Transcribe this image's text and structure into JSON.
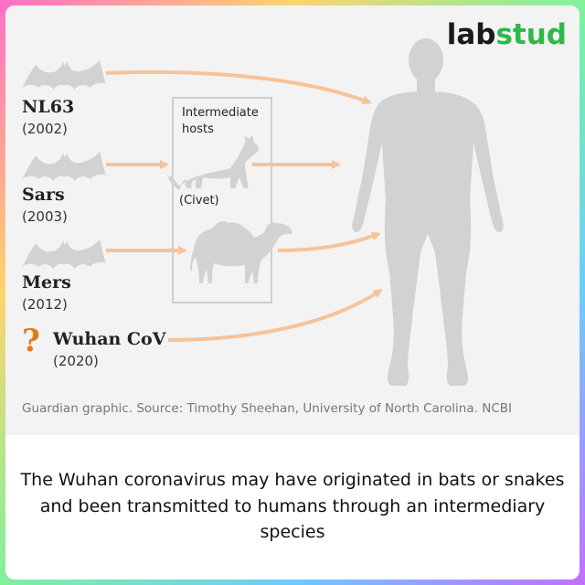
{
  "logo": {
    "part1": "lab",
    "part2": "stud"
  },
  "viruses": [
    {
      "name": "NL63",
      "year": "(2002)"
    },
    {
      "name": "Sars",
      "year": "(2003)"
    },
    {
      "name": "Mers",
      "year": "(2012)"
    },
    {
      "name": "Wuhan CoV",
      "year": "(2020)"
    }
  ],
  "unknown_marker": "?",
  "intermediate_box": {
    "title": "Intermediate hosts",
    "civet_label": "(Civet)"
  },
  "source": "Guardian graphic. Source: Timothy Sheehan, University of North Carolina. NCBI",
  "caption": "The Wuhan coronavirus may have originated in bats or snakes and been transmitted to humans through an intermediary species",
  "colors": {
    "arrow": "#f6c39a",
    "silhouette": "#d2d2d2",
    "question_mark": "#e07a20",
    "logo_accent": "#2fb84a"
  },
  "icons": [
    "bat-icon",
    "civet-icon",
    "camel-icon",
    "human-icon"
  ]
}
